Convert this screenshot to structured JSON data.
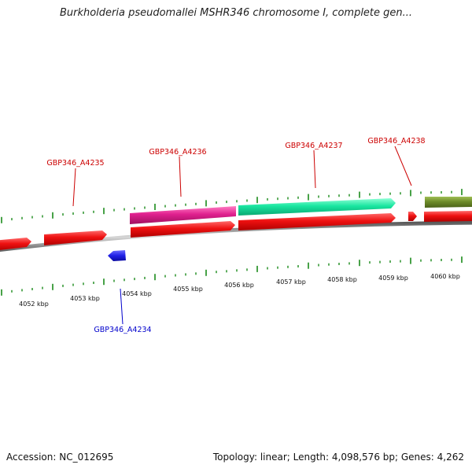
{
  "title": "Burkholderia pseudomallei MSHR346 chromosome I, complete gen...",
  "footer": {
    "accession": "Accession: NC_012695",
    "stats": "Topology: linear; Length: 4,098,576 bp; Genes: 4,262"
  },
  "scale": {
    "labels": [
      "4052 kbp",
      "4053 kbp",
      "4054 kbp",
      "4055 kbp",
      "4056 kbp",
      "4057 kbp",
      "4058 kbp",
      "4059 kbp",
      "4060 kbp"
    ]
  },
  "genes": [
    {
      "label": "GBP346_A4234",
      "color": "#0000cc",
      "strand": "minus"
    },
    {
      "label": "GBP346_A4235",
      "color": "#cc0000",
      "strand": "plus"
    },
    {
      "label": "GBP346_A4236",
      "color": "#cc0000",
      "strand": "plus"
    },
    {
      "label": "GBP346_A4237",
      "color": "#cc0000",
      "strand": "plus"
    },
    {
      "label": "GBP346_A4238",
      "color": "#cc0000",
      "strand": "plus"
    }
  ],
  "colors": {
    "cds": "#ee1111",
    "gene_pink": "#e0208f",
    "gene_teal": "#19e6a0",
    "gene_olive": "#6e8c2a",
    "minus_gene": "#1f1fe6",
    "tick": "#1a8a1a",
    "backbone": "#8a8a8a"
  }
}
